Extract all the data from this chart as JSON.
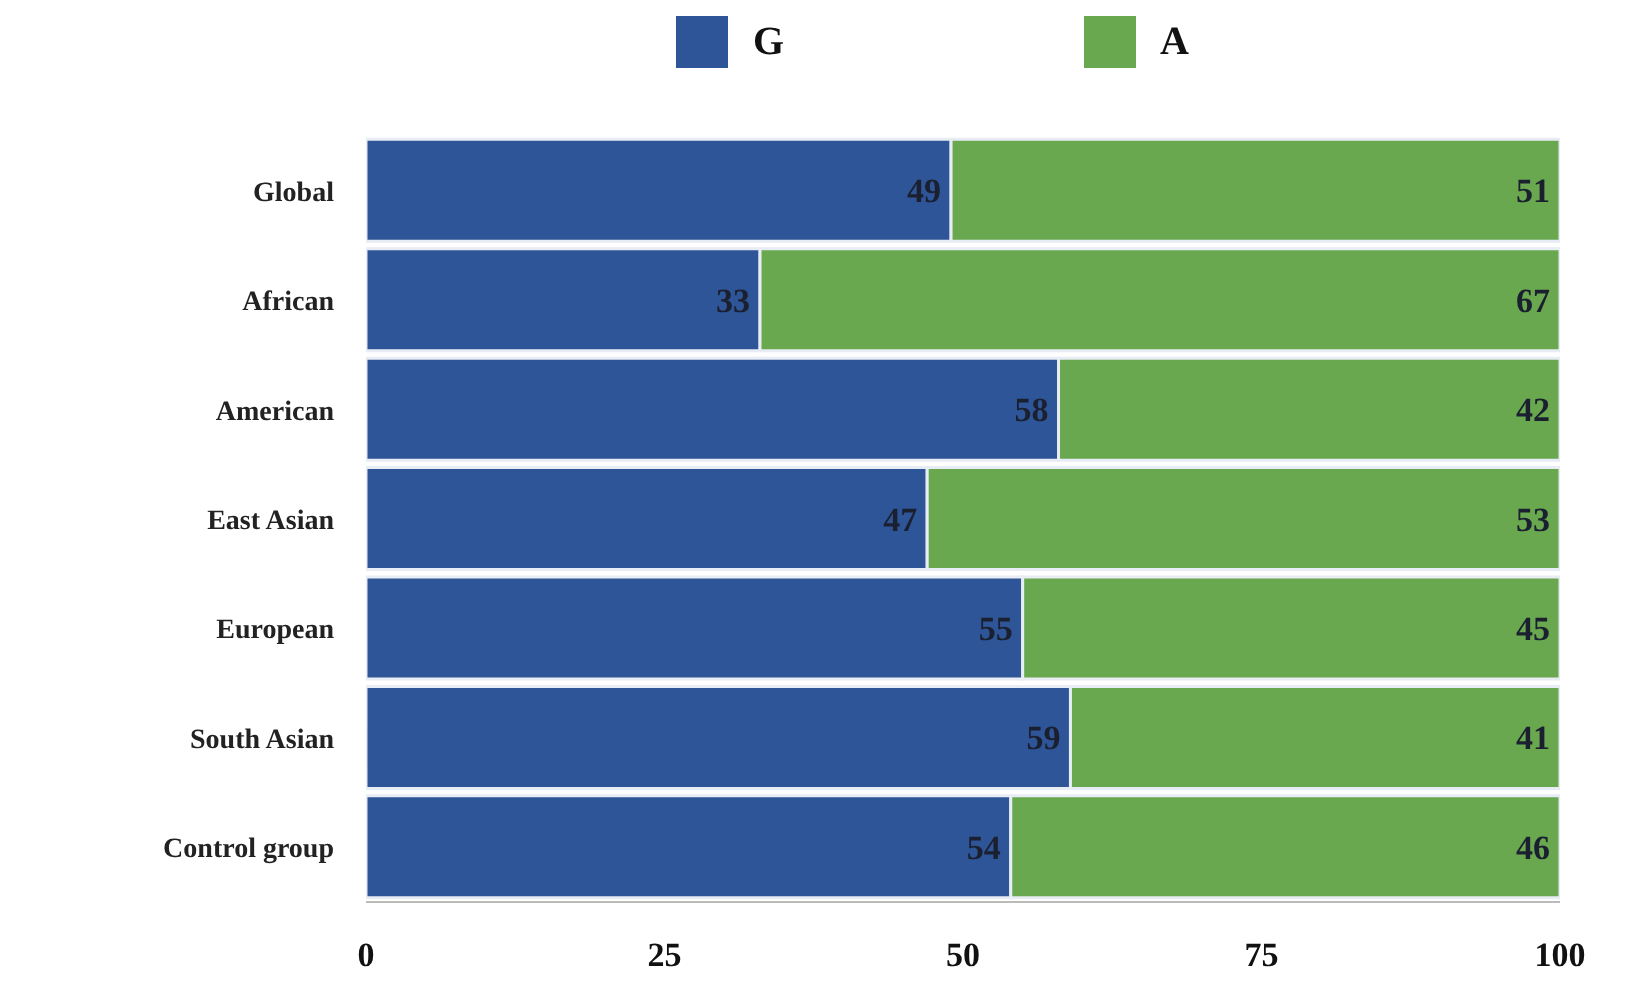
{
  "chart_data": {
    "type": "bar",
    "orientation": "horizontal",
    "stacked": true,
    "categories": [
      "Global",
      "African",
      "American",
      "East Asian",
      "European",
      "South Asian",
      "Control group"
    ],
    "series": [
      {
        "name": "G",
        "color": "#2e5597",
        "values": [
          49,
          33,
          58,
          47,
          55,
          59,
          54
        ]
      },
      {
        "name": "A",
        "color": "#6aa84f",
        "values": [
          51,
          67,
          42,
          53,
          45,
          41,
          46
        ]
      }
    ],
    "xlim": [
      0,
      100
    ],
    "xticks": [
      0,
      25,
      50,
      75,
      100
    ],
    "data_labels": true,
    "legend": "top",
    "grid": false
  }
}
